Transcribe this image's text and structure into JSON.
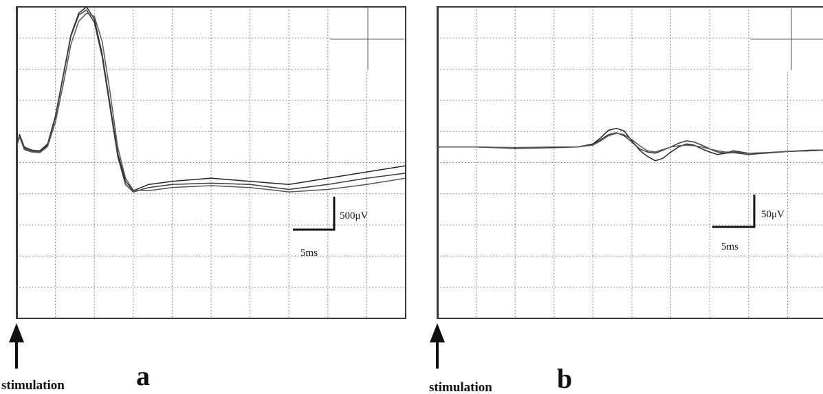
{
  "panels": [
    {
      "id": "a",
      "panel_label": "a",
      "stim_label": "stimulation",
      "scale": {
        "voltage_label": "500μV",
        "time_label": "5ms"
      }
    },
    {
      "id": "b",
      "panel_label": "b",
      "stim_label": "stimulation",
      "scale": {
        "voltage_label": "50μV",
        "time_label": "5ms"
      }
    }
  ],
  "chart_data": [
    {
      "type": "line",
      "panel": "a",
      "title": "",
      "xlabel": "",
      "ylabel": "",
      "grid": true,
      "x_unit": "ms",
      "y_unit": "μV",
      "xlim": [
        0,
        50
      ],
      "ylim": [
        -2750,
        2250
      ],
      "scale_bar": {
        "time_ms": 5,
        "voltage_uV": 500
      },
      "colors": [
        "#222222",
        "#3a3a3a",
        "#555555"
      ],
      "series": [
        {
          "x": [
            0,
            0.4,
            1,
            2,
            3,
            4,
            5,
            6,
            7,
            8,
            9,
            10,
            11,
            12,
            13,
            14,
            15,
            17,
            20,
            25,
            30,
            35,
            40,
            45,
            50
          ],
          "y": [
            0,
            200,
            0,
            -50,
            -60,
            50,
            500,
            1150,
            1800,
            2150,
            2250,
            2050,
            1500,
            700,
            -100,
            -550,
            -700,
            -600,
            -550,
            -500,
            -550,
            -600,
            -500,
            -400,
            -300
          ]
        },
        {
          "x": [
            0,
            0.4,
            1,
            2,
            3,
            4,
            5,
            6,
            7,
            8,
            9,
            10,
            11,
            12,
            13,
            14,
            15,
            17,
            20,
            25,
            30,
            35,
            40,
            45,
            50
          ],
          "y": [
            0,
            180,
            -20,
            -70,
            -80,
            30,
            480,
            1130,
            1780,
            2120,
            2200,
            2000,
            1450,
            650,
            -150,
            -600,
            -720,
            -650,
            -600,
            -580,
            -600,
            -680,
            -600,
            -500,
            -420
          ]
        },
        {
          "x": [
            0,
            0.4,
            1,
            2,
            3,
            4,
            5,
            6,
            7,
            8,
            9,
            10,
            11,
            12,
            13,
            14,
            15,
            17,
            20,
            25,
            30,
            35,
            40,
            45,
            50
          ],
          "y": [
            0,
            160,
            -40,
            -80,
            -90,
            10,
            400,
            1000,
            1650,
            2020,
            2150,
            2100,
            1700,
            900,
            0,
            -500,
            -690,
            -700,
            -650,
            -620,
            -650,
            -720,
            -680,
            -600,
            -500
          ]
        }
      ]
    },
    {
      "type": "line",
      "panel": "b",
      "title": "",
      "xlabel": "",
      "ylabel": "",
      "grid": true,
      "x_unit": "ms",
      "y_unit": "μV",
      "xlim": [
        0,
        50
      ],
      "ylim": [
        -275,
        225
      ],
      "scale_bar": {
        "time_ms": 5,
        "voltage_uV": 50
      },
      "colors": [
        "#222222",
        "#3a3a3a",
        "#555555"
      ],
      "series": [
        {
          "x": [
            0,
            5,
            10,
            15,
            18,
            20,
            21,
            22,
            23,
            24,
            25,
            26,
            27,
            28,
            29,
            30,
            31,
            32,
            33,
            34,
            35,
            36,
            37,
            38,
            40,
            42,
            45,
            48,
            50
          ],
          "y": [
            0,
            0,
            -2,
            -1,
            0,
            5,
            15,
            27,
            30,
            26,
            10,
            -5,
            -15,
            -22,
            -18,
            -8,
            0,
            5,
            3,
            -3,
            -8,
            -12,
            -10,
            -6,
            -10,
            -10,
            -7,
            -5,
            -5
          ]
        },
        {
          "x": [
            0,
            5,
            10,
            15,
            18,
            20,
            21,
            22,
            23,
            24,
            25,
            26,
            27,
            28,
            29,
            30,
            31,
            32,
            33,
            34,
            35,
            36,
            37,
            38,
            40,
            42,
            45,
            48,
            50
          ],
          "y": [
            0,
            0,
            -1,
            0,
            0,
            4,
            12,
            20,
            23,
            18,
            8,
            -3,
            -8,
            -10,
            -5,
            0,
            6,
            10,
            8,
            3,
            -3,
            -8,
            -10,
            -9,
            -12,
            -10,
            -7,
            -6,
            -5
          ]
        },
        {
          "x": [
            0,
            5,
            10,
            15,
            18,
            20,
            21,
            22,
            23,
            24,
            25,
            26,
            27,
            28,
            29,
            30,
            31,
            32,
            33,
            34,
            35,
            36,
            37,
            38,
            40,
            42,
            45,
            48,
            50
          ],
          "y": [
            0,
            0,
            -1,
            0,
            0,
            3,
            10,
            18,
            22,
            20,
            12,
            2,
            -6,
            -8,
            -4,
            0,
            2,
            3,
            2,
            0,
            -3,
            -6,
            -8,
            -8,
            -10,
            -9,
            -7,
            -6,
            -5
          ]
        }
      ]
    }
  ]
}
